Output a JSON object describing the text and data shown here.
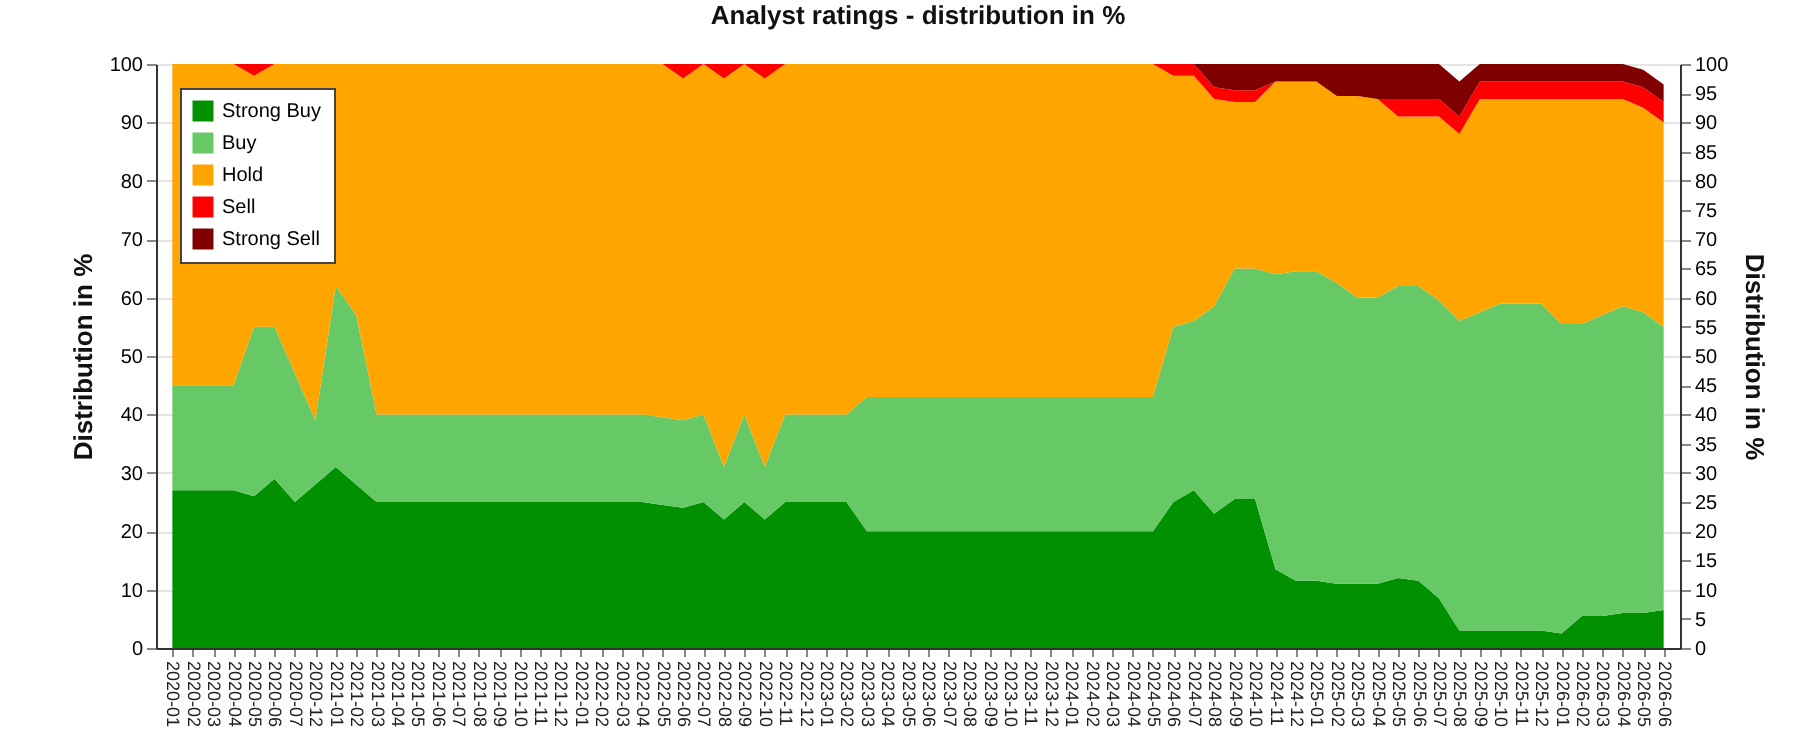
{
  "chart_data": {
    "type": "area",
    "stacked": true,
    "title": "Analyst ratings - distribution in %",
    "ylabel": "Distribution in %",
    "y2label": "Distribution in %",
    "categories": [
      "2020-01",
      "2020-02",
      "2020-03",
      "2020-04",
      "2020-05",
      "2020-06",
      "2020-07",
      "2020-12",
      "2021-01",
      "2021-02",
      "2021-03",
      "2021-04",
      "2021-05",
      "2021-06",
      "2021-07",
      "2021-08",
      "2021-09",
      "2021-10",
      "2021-11",
      "2021-12",
      "2022-01",
      "2022-02",
      "2022-03",
      "2022-04",
      "2022-05",
      "2022-06",
      "2022-07",
      "2022-08",
      "2022-09",
      "2022-10",
      "2022-11",
      "2022-12",
      "2023-01",
      "2023-02",
      "2023-03",
      "2023-04",
      "2023-05",
      "2023-06",
      "2023-07",
      "2023-08",
      "2023-09",
      "2023-10",
      "2023-11",
      "2023-12",
      "2024-01",
      "2024-02",
      "2024-03",
      "2024-04",
      "2024-05",
      "2024-06",
      "2024-07",
      "2024-08",
      "2024-09",
      "2024-10",
      "2024-11",
      "2024-12",
      "2025-01",
      "2025-02",
      "2025-03",
      "2025-04",
      "2025-05",
      "2025-06",
      "2025-07",
      "2025-08",
      "2025-09",
      "2025-10",
      "2025-11",
      "2025-12",
      "2026-01",
      "2026-02",
      "2026-03",
      "2026-04",
      "2026-05",
      "2026-06"
    ],
    "series": [
      {
        "name": "Strong Buy",
        "color": "#009000",
        "values": [
          27,
          27,
          27,
          27,
          26,
          29,
          25,
          28,
          31,
          28,
          25,
          25,
          25,
          25,
          25,
          25,
          25,
          25,
          25,
          25,
          25,
          25,
          25,
          25,
          24.5,
          24,
          25,
          22,
          25,
          22,
          25,
          25,
          25,
          25,
          20,
          20,
          20,
          20,
          20,
          20,
          20,
          20,
          20,
          20,
          20,
          20,
          20,
          20,
          20,
          25,
          27,
          23,
          25.5,
          25.5,
          13.5,
          11.5,
          11.5,
          11,
          11,
          11,
          12,
          11.5,
          8.5,
          3,
          3,
          3,
          3,
          3,
          2.5,
          5.5,
          5.5,
          6,
          6,
          6.5
        ]
      },
      {
        "name": "Buy",
        "color": "#66c966",
        "values": [
          18,
          18,
          18,
          18,
          29,
          26,
          22,
          11,
          31,
          29,
          15,
          15,
          15,
          15,
          15,
          15,
          15,
          15,
          15,
          15,
          15,
          15,
          15,
          15,
          15,
          15,
          15,
          9,
          15,
          9,
          15,
          15,
          15,
          15,
          23,
          23,
          23,
          23,
          23,
          23,
          23,
          23,
          23,
          23,
          23,
          23,
          23,
          23,
          23,
          30,
          29,
          35.5,
          39.5,
          39.5,
          50.5,
          53,
          53,
          51.5,
          49,
          49,
          50,
          50.5,
          51,
          53,
          54.5,
          56,
          56,
          56,
          53,
          50,
          51.5,
          52.5,
          51.5,
          48.5
        ]
      },
      {
        "name": "Hold",
        "color": "#ffa500",
        "values": [
          55,
          55,
          55,
          55,
          43,
          45,
          53,
          61,
          38,
          43,
          60,
          60,
          60,
          60,
          60,
          60,
          60,
          60,
          60,
          60,
          60,
          60,
          60,
          60,
          60.5,
          58.5,
          60,
          66.5,
          60,
          66.5,
          60,
          60,
          60,
          60,
          57,
          57,
          57,
          57,
          57,
          57,
          57,
          57,
          57,
          57,
          57,
          57,
          57,
          57,
          57,
          43,
          42,
          35.5,
          28.5,
          28.5,
          33,
          32.5,
          32.5,
          32,
          34.5,
          34,
          29,
          29,
          31.5,
          32,
          36.5,
          35,
          35,
          35,
          38.5,
          38.5,
          37,
          35.5,
          35,
          35
        ]
      },
      {
        "name": "Sell",
        "color": "#ff0000",
        "values": [
          0,
          0,
          0,
          0,
          2,
          0,
          0,
          0,
          0,
          0,
          0,
          0,
          0,
          0,
          0,
          0,
          0,
          0,
          0,
          0,
          0,
          0,
          0,
          0,
          0,
          2.5,
          0,
          2.5,
          0,
          2.5,
          0,
          0,
          0,
          0,
          0,
          0,
          0,
          0,
          0,
          0,
          0,
          0,
          0,
          0,
          0,
          0,
          0,
          0,
          0,
          2,
          2,
          2,
          2,
          2,
          0,
          0,
          0,
          0,
          0,
          0,
          3,
          3,
          3,
          3,
          3,
          3,
          3,
          3,
          3,
          3,
          3,
          3,
          3.5,
          3.5
        ]
      },
      {
        "name": "Strong Sell",
        "color": "#800000",
        "values": [
          0,
          0,
          0,
          0,
          0,
          0,
          0,
          0,
          0,
          0,
          0,
          0,
          0,
          0,
          0,
          0,
          0,
          0,
          0,
          0,
          0,
          0,
          0,
          0,
          0,
          0,
          0,
          0,
          0,
          0,
          0,
          0,
          0,
          0,
          0,
          0,
          0,
          0,
          0,
          0,
          0,
          0,
          0,
          0,
          0,
          0,
          0,
          0,
          0,
          0,
          0,
          4,
          4.5,
          4.5,
          3,
          3,
          3,
          5.5,
          5.5,
          6,
          6,
          6,
          6,
          6,
          3,
          3,
          3,
          3,
          3,
          3,
          3,
          3,
          3,
          3
        ]
      }
    ],
    "ylim": [
      0,
      100
    ],
    "yticks": [
      0,
      10,
      20,
      30,
      40,
      50,
      60,
      70,
      80,
      90,
      100
    ],
    "y2lim": [
      0,
      100
    ],
    "y2ticks": [
      0,
      5,
      10,
      15,
      20,
      25,
      30,
      35,
      40,
      45,
      50,
      55,
      60,
      65,
      70,
      75,
      80,
      85,
      90,
      95,
      100
    ],
    "grid": "y",
    "legend": "top left"
  }
}
